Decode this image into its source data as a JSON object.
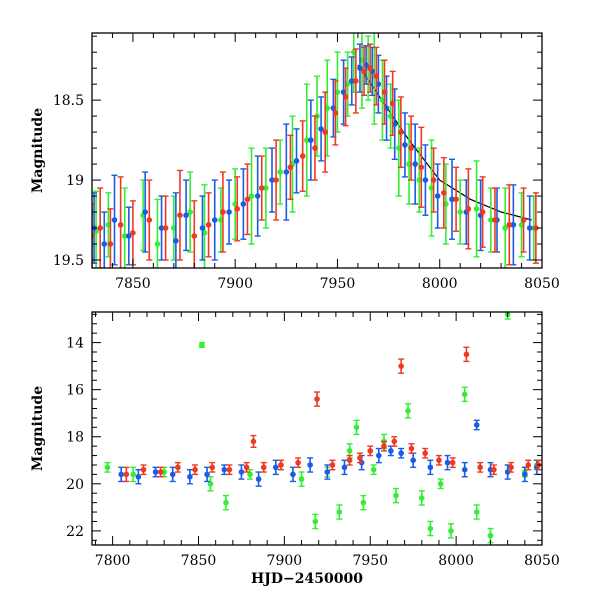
{
  "chart_data": [
    {
      "type": "scatter",
      "xlim": [
        7830,
        8050
      ],
      "ylim": [
        19.55,
        18.08
      ],
      "y_inverted": true,
      "ylabel": "Magnitude",
      "xlabel": "",
      "x_ticks": [
        7850,
        7900,
        7950,
        8000,
        8050
      ],
      "x_ticklabels": [
        "7850",
        "7900",
        "7950",
        "8000",
        "8050"
      ],
      "y_ticks": [
        18.5,
        19,
        19.5
      ],
      "y_ticklabels": [
        "18.5",
        "19",
        "19.5"
      ],
      "model_curve": {
        "color": "#000000",
        "x": [
          7960,
          7985,
          8000,
          8015,
          8030,
          8045
        ],
        "y": [
          18.28,
          18.75,
          19.0,
          19.12,
          19.2,
          19.25
        ]
      },
      "series": [
        {
          "color": "#33ee33",
          "x": [
            7832,
            7838,
            7846,
            7855,
            7862,
            7870,
            7878,
            7885,
            7893,
            7900,
            7908,
            7915,
            7922,
            7928,
            7935,
            7940,
            7945,
            7950,
            7955,
            7958,
            7962,
            7965,
            7968,
            7972,
            7976,
            7980,
            7985,
            7990,
            7996,
            8003,
            8010,
            8018,
            8025,
            8032,
            8040,
            8046
          ],
          "y": [
            19.32,
            19.28,
            19.35,
            19.22,
            19.4,
            19.3,
            19.2,
            19.33,
            19.25,
            19.15,
            19.1,
            19.05,
            18.95,
            18.9,
            18.75,
            18.6,
            18.55,
            18.45,
            18.4,
            18.2,
            18.25,
            18.3,
            18.35,
            18.5,
            18.6,
            18.8,
            18.9,
            19.0,
            19.05,
            19.15,
            19.2,
            19.18,
            19.25,
            19.3,
            19.28,
            19.3
          ],
          "err": [
            0.25,
            0.2,
            0.3,
            0.22,
            0.28,
            0.2,
            0.25,
            0.3,
            0.2,
            0.22,
            0.3,
            0.25,
            0.2,
            0.3,
            0.35,
            0.25,
            0.3,
            0.25,
            0.2,
            0.25,
            0.3,
            0.2,
            0.3,
            0.25,
            0.2,
            0.3,
            0.25,
            0.2,
            0.3,
            0.25,
            0.2,
            0.3,
            0.2,
            0.25,
            0.2,
            0.2
          ]
        },
        {
          "color": "#1a5ce6",
          "x": [
            7831,
            7836,
            7841,
            7848,
            7856,
            7864,
            7871,
            7876,
            7884,
            7890,
            7897,
            7904,
            7911,
            7918,
            7925,
            7930,
            7937,
            7942,
            7948,
            7953,
            7957,
            7961,
            7964,
            7967,
            7970,
            7974,
            7978,
            7983,
            7988,
            7993,
            7999,
            8006,
            8013,
            8020,
            8028,
            8036,
            8044
          ],
          "y": [
            19.3,
            19.4,
            19.25,
            19.35,
            19.2,
            19.3,
            19.38,
            19.22,
            19.3,
            19.25,
            19.2,
            19.15,
            19.1,
            19.0,
            18.95,
            18.88,
            18.75,
            18.68,
            18.55,
            18.45,
            18.38,
            18.3,
            18.28,
            18.32,
            18.4,
            18.55,
            18.65,
            18.78,
            18.9,
            19.0,
            19.1,
            19.12,
            19.2,
            19.22,
            19.25,
            19.28,
            19.3
          ],
          "err": [
            0.22,
            0.2,
            0.28,
            0.18,
            0.25,
            0.2,
            0.3,
            0.22,
            0.2,
            0.25,
            0.2,
            0.22,
            0.25,
            0.2,
            0.3,
            0.2,
            0.25,
            0.2,
            0.18,
            0.2,
            0.15,
            0.15,
            0.12,
            0.15,
            0.18,
            0.2,
            0.22,
            0.2,
            0.25,
            0.22,
            0.2,
            0.25,
            0.2,
            0.22,
            0.2,
            0.25,
            0.2
          ]
        },
        {
          "color": "#ee3a22",
          "x": [
            7830,
            7834,
            7839,
            7844,
            7850,
            7858,
            7866,
            7873,
            7880,
            7887,
            7894,
            7901,
            7906,
            7913,
            7920,
            7927,
            7933,
            7939,
            7944,
            7949,
            7954,
            7959,
            7963,
            7966,
            7969,
            7973,
            7977,
            7981,
            7986,
            7991,
            7997,
            8002,
            8008,
            8014,
            8021,
            8027,
            8034,
            8041,
            8047
          ],
          "y": [
            19.35,
            19.3,
            19.4,
            19.28,
            19.33,
            19.25,
            19.3,
            19.22,
            19.35,
            19.28,
            19.2,
            19.18,
            19.12,
            19.05,
            19.0,
            18.92,
            18.85,
            18.8,
            18.7,
            18.58,
            18.48,
            18.38,
            18.32,
            18.3,
            18.35,
            18.45,
            18.52,
            18.7,
            18.8,
            18.92,
            19.0,
            19.08,
            19.12,
            19.18,
            19.2,
            19.25,
            19.28,
            19.25,
            19.3
          ],
          "err": [
            0.2,
            0.25,
            0.22,
            0.3,
            0.2,
            0.25,
            0.2,
            0.28,
            0.22,
            0.2,
            0.25,
            0.2,
            0.22,
            0.2,
            0.25,
            0.2,
            0.22,
            0.2,
            0.25,
            0.2,
            0.18,
            0.2,
            0.15,
            0.15,
            0.18,
            0.2,
            0.2,
            0.22,
            0.2,
            0.25,
            0.2,
            0.22,
            0.2,
            0.25,
            0.22,
            0.2,
            0.25,
            0.2,
            0.22
          ]
        }
      ]
    },
    {
      "type": "scatter",
      "xlim": [
        7788,
        8050
      ],
      "ylim": [
        22.6,
        12.7
      ],
      "y_inverted": true,
      "ylabel": "Magnitude",
      "xlabel": "HJD−2450000",
      "x_ticks": [
        7800,
        7850,
        7900,
        7950,
        8000,
        8050
      ],
      "x_ticklabels": [
        "7800",
        "7850",
        "7900",
        "7950",
        "8000",
        "8050"
      ],
      "y_ticks": [
        14,
        16,
        18,
        20,
        22
      ],
      "y_ticklabels": [
        "14",
        "16",
        "18",
        "20",
        "22"
      ],
      "series": [
        {
          "color": "#33ee33",
          "x": [
            7797,
            7812,
            7830,
            7852,
            7857,
            7866,
            7880,
            7898,
            7910,
            7918,
            7925,
            7932,
            7938,
            7942,
            7946,
            7952,
            7958,
            7965,
            7972,
            7980,
            7985,
            7991,
            7997,
            8005,
            8012,
            8020,
            8030,
            8040,
            8047
          ],
          "y": [
            19.3,
            19.6,
            19.5,
            14.1,
            20.0,
            20.8,
            19.6,
            19.2,
            19.8,
            21.6,
            19.5,
            21.2,
            18.6,
            17.6,
            20.8,
            19.4,
            18.2,
            20.5,
            16.9,
            20.6,
            21.9,
            20.0,
            22.0,
            16.2,
            21.2,
            22.2,
            12.8,
            19.5,
            19.2
          ],
          "err": [
            0.2,
            0.3,
            0.2,
            0.1,
            0.3,
            0.3,
            0.2,
            0.2,
            0.3,
            0.3,
            0.2,
            0.3,
            0.3,
            0.3,
            0.3,
            0.2,
            0.3,
            0.3,
            0.3,
            0.3,
            0.3,
            0.2,
            0.3,
            0.3,
            0.3,
            0.3,
            0.2,
            0.2,
            0.2
          ]
        },
        {
          "color": "#1a5ce6",
          "x": [
            7805,
            7815,
            7825,
            7835,
            7845,
            7855,
            7865,
            7875,
            7885,
            7895,
            7905,
            7915,
            7925,
            7935,
            7945,
            7955,
            7962,
            7968,
            7975,
            7985,
            7995,
            8005,
            8012,
            8020,
            8030,
            8040,
            8047
          ],
          "y": [
            19.6,
            19.7,
            19.5,
            19.6,
            19.7,
            19.6,
            19.4,
            19.5,
            19.8,
            19.3,
            19.6,
            19.2,
            19.5,
            19.3,
            19.1,
            18.8,
            18.6,
            18.7,
            19.0,
            19.3,
            19.1,
            19.4,
            17.5,
            19.4,
            19.5,
            19.6,
            19.3
          ],
          "err": [
            0.3,
            0.3,
            0.2,
            0.3,
            0.3,
            0.3,
            0.2,
            0.3,
            0.3,
            0.3,
            0.3,
            0.3,
            0.3,
            0.3,
            0.3,
            0.3,
            0.2,
            0.2,
            0.3,
            0.3,
            0.3,
            0.3,
            0.2,
            0.3,
            0.3,
            0.3,
            0.3
          ]
        },
        {
          "color": "#ee3a22",
          "x": [
            7808,
            7818,
            7828,
            7838,
            7848,
            7858,
            7868,
            7878,
            7882,
            7888,
            7898,
            7908,
            7919,
            7928,
            7938,
            7944,
            7950,
            7958,
            7964,
            7968,
            7974,
            7982,
            7990,
            7998,
            8006,
            8014,
            8022,
            8032,
            8042,
            8048
          ],
          "y": [
            19.6,
            19.4,
            19.5,
            19.3,
            19.4,
            19.3,
            19.4,
            19.3,
            18.2,
            19.3,
            19.2,
            19.1,
            16.4,
            19.2,
            19.0,
            18.9,
            18.6,
            18.4,
            18.2,
            15.0,
            18.5,
            18.7,
            19.0,
            19.1,
            14.5,
            19.3,
            19.4,
            19.3,
            19.2,
            19.2
          ],
          "err": [
            0.3,
            0.2,
            0.2,
            0.2,
            0.2,
            0.2,
            0.2,
            0.2,
            0.25,
            0.2,
            0.2,
            0.2,
            0.3,
            0.2,
            0.2,
            0.2,
            0.2,
            0.2,
            0.2,
            0.3,
            0.2,
            0.2,
            0.2,
            0.2,
            0.3,
            0.2,
            0.2,
            0.2,
            0.2,
            0.2
          ]
        }
      ]
    }
  ]
}
